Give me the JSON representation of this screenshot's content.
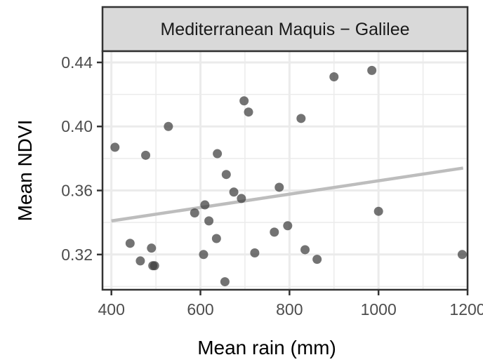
{
  "chart_data": {
    "type": "scatter",
    "facet_title": "Mediterranean Maquis − Galilee",
    "xlabel": "Mean rain (mm)",
    "ylabel": "Mean NDVI",
    "xlim": [
      380,
      1200
    ],
    "ylim": [
      0.298,
      0.447
    ],
    "x_ticks": [
      400,
      600,
      800,
      1000,
      1200
    ],
    "x_tick_labels": [
      "400",
      "600",
      "800",
      "1000",
      "1200"
    ],
    "y_ticks": [
      0.32,
      0.36,
      0.4,
      0.44
    ],
    "y_tick_labels": [
      "0.32",
      "0.36",
      "0.40",
      "0.44"
    ],
    "grid": true,
    "points": [
      {
        "x": 408,
        "y": 0.387
      },
      {
        "x": 442,
        "y": 0.327
      },
      {
        "x": 465,
        "y": 0.316
      },
      {
        "x": 477,
        "y": 0.382
      },
      {
        "x": 490,
        "y": 0.324
      },
      {
        "x": 493,
        "y": 0.313
      },
      {
        "x": 497,
        "y": 0.313
      },
      {
        "x": 528,
        "y": 0.4
      },
      {
        "x": 587,
        "y": 0.346
      },
      {
        "x": 607,
        "y": 0.32
      },
      {
        "x": 610,
        "y": 0.351
      },
      {
        "x": 619,
        "y": 0.341
      },
      {
        "x": 636,
        "y": 0.33
      },
      {
        "x": 638,
        "y": 0.383
      },
      {
        "x": 655,
        "y": 0.303
      },
      {
        "x": 658,
        "y": 0.37
      },
      {
        "x": 675,
        "y": 0.359
      },
      {
        "x": 692,
        "y": 0.355
      },
      {
        "x": 698,
        "y": 0.416
      },
      {
        "x": 708,
        "y": 0.409
      },
      {
        "x": 722,
        "y": 0.321
      },
      {
        "x": 766,
        "y": 0.334
      },
      {
        "x": 777,
        "y": 0.362
      },
      {
        "x": 796,
        "y": 0.338
      },
      {
        "x": 826,
        "y": 0.405
      },
      {
        "x": 835,
        "y": 0.323
      },
      {
        "x": 862,
        "y": 0.317
      },
      {
        "x": 900,
        "y": 0.431
      },
      {
        "x": 985,
        "y": 0.435
      },
      {
        "x": 1000,
        "y": 0.347
      },
      {
        "x": 1188,
        "y": 0.32
      }
    ],
    "trend_line": {
      "x": [
        400,
        1190
      ],
      "y": [
        0.341,
        0.374
      ]
    },
    "colors": {
      "point": "#3d3d3d",
      "trend": "#bdbdbd",
      "grid": "#ebebeb",
      "panel_border": "#333333",
      "strip_fill": "#d9d9d9"
    }
  }
}
